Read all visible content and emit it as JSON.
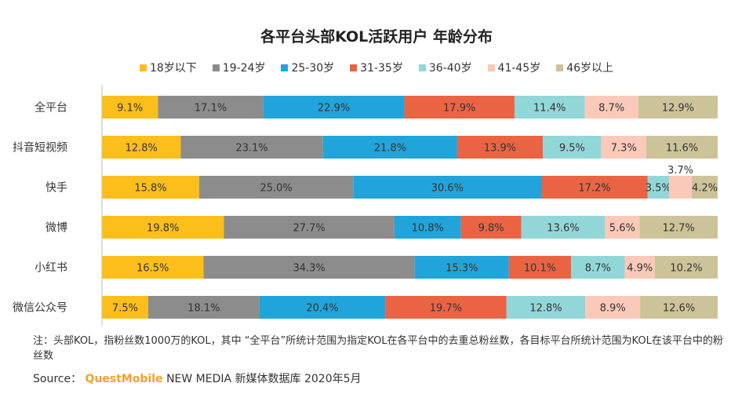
{
  "chart_data": {
    "type": "bar",
    "orientation": "horizontal",
    "stacked": true,
    "percent": true,
    "title": "各平台头部KOL活跃用户 年龄分布",
    "categories": [
      "全平台",
      "抖音短视频",
      "快手",
      "微博",
      "小红书",
      "微信公众号"
    ],
    "series": [
      {
        "name": "18岁以下",
        "color": "#fbbe1b",
        "values": [
          9.1,
          12.8,
          15.8,
          19.8,
          16.5,
          7.5
        ]
      },
      {
        "name": "19-24岁",
        "color": "#8c8c8c",
        "values": [
          17.1,
          23.1,
          25.0,
          27.7,
          34.3,
          18.1
        ]
      },
      {
        "name": "25-30岁",
        "color": "#21a4dc",
        "values": [
          22.9,
          21.8,
          30.6,
          10.8,
          15.3,
          20.4
        ]
      },
      {
        "name": "31-35岁",
        "color": "#ea6443",
        "values": [
          17.9,
          13.9,
          17.2,
          9.8,
          10.1,
          19.7
        ]
      },
      {
        "name": "36-40岁",
        "color": "#92d7d8",
        "values": [
          11.4,
          9.5,
          3.5,
          13.6,
          8.7,
          12.8
        ]
      },
      {
        "name": "41-45岁",
        "color": "#fbc9b9",
        "values": [
          8.7,
          7.3,
          3.7,
          5.6,
          4.9,
          8.9
        ]
      },
      {
        "name": "46岁以上",
        "color": "#cdc399",
        "values": [
          12.9,
          11.6,
          4.2,
          12.7,
          10.2,
          12.6
        ]
      }
    ],
    "data_labels": true,
    "xlim": [
      0,
      100
    ],
    "legend": "top",
    "grid": false
  },
  "note": "注：头部KOL，指粉丝数1000万的KOL，其中 “全平台”所统计范围为指定KOL在各平台中的去重总粉丝数，各目标平台所统计范围为KOL在该平台中的粉丝数",
  "source": {
    "label": "Source：",
    "brand": "QuestMobile",
    "rest": "NEW MEDIA 新媒体数据库 2020年5月"
  }
}
